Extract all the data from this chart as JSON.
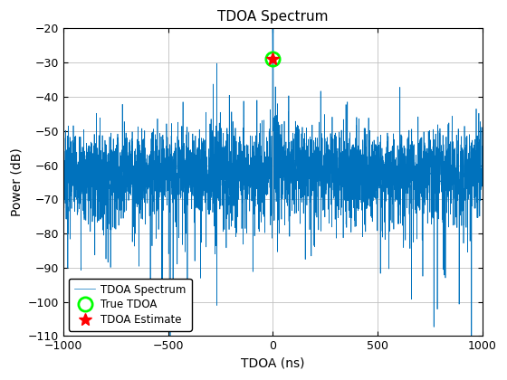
{
  "title": "TDOA Spectrum",
  "xlabel": "TDOA (ns)",
  "ylabel": "Power (dB)",
  "xlim": [
    -1000,
    1000
  ],
  "ylim": [
    -110,
    -20
  ],
  "yticks": [
    -20,
    -30,
    -40,
    -50,
    -60,
    -70,
    -80,
    -90,
    -100,
    -110
  ],
  "xticks": [
    -1000,
    -500,
    0,
    500,
    1000
  ],
  "peak_x": 0,
  "peak_y": -29.0,
  "true_tdoa_x": 0,
  "true_tdoa_y": -29.0,
  "noise_mean": -62,
  "noise_std": 6,
  "line_color": "#0072BD",
  "marker_estimate_color": "red",
  "marker_true_color": "#00FF00",
  "legend_labels": [
    "TDOA Spectrum",
    "TDOA Estimate",
    "True TDOA"
  ],
  "seed": 7,
  "n_points": 4001
}
